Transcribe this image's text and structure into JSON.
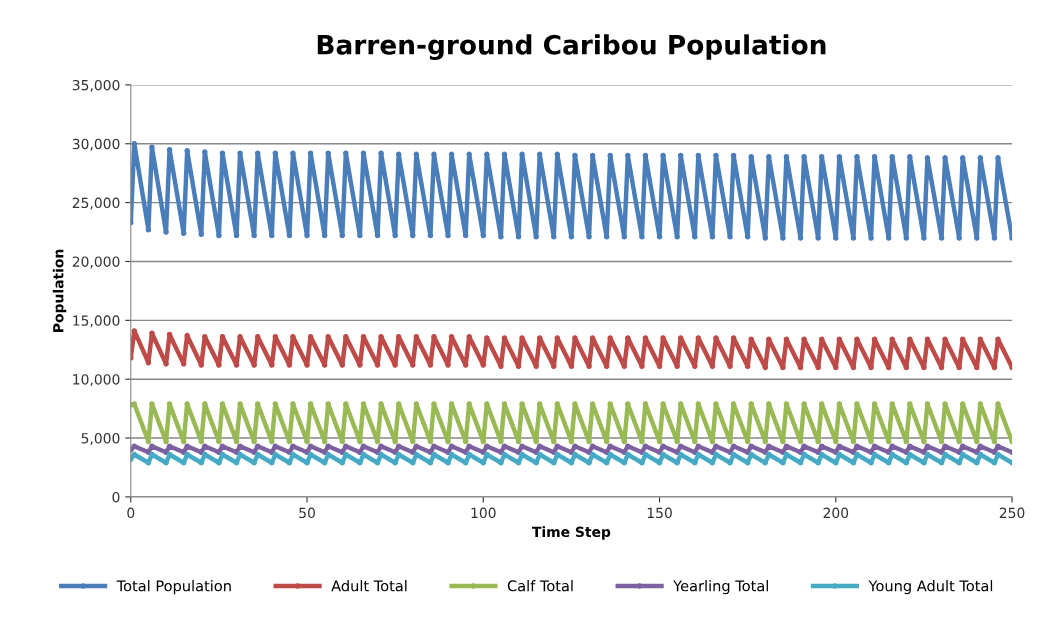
{
  "chart_data": {
    "type": "line",
    "title": "Barren-ground Caribou Population",
    "xlabel": "Time Step",
    "ylabel": "Population",
    "x": [
      0,
      1,
      5,
      6,
      10,
      11,
      15,
      16,
      20,
      21,
      25,
      26,
      30,
      31,
      35,
      36,
      40,
      41,
      45,
      46,
      50,
      51,
      55,
      56,
      60,
      61,
      65,
      66,
      70,
      71,
      75,
      76,
      80,
      81,
      85,
      86,
      90,
      91,
      95,
      96,
      100,
      101,
      105,
      106,
      110,
      111,
      115,
      116,
      120,
      121,
      125,
      126,
      130,
      131,
      135,
      136,
      140,
      141,
      145,
      146,
      150,
      151,
      155,
      156,
      160,
      161,
      165,
      166,
      170,
      171,
      175,
      176,
      180,
      181,
      185,
      186,
      190,
      191,
      195,
      196,
      200,
      201,
      205,
      206,
      210,
      211,
      215,
      216,
      220,
      221,
      225,
      226,
      230,
      231,
      235,
      236,
      240,
      241,
      245,
      246,
      250
    ],
    "series": [
      {
        "name": "Total Population",
        "color": "#4a7ebb",
        "values": [
          23300,
          30000,
          22700,
          29700,
          22500,
          29500,
          22400,
          29400,
          22300,
          29300,
          22200,
          29200,
          22200,
          29200,
          22200,
          29200,
          22200,
          29200,
          22200,
          29200,
          22200,
          29200,
          22200,
          29200,
          22200,
          29200,
          22200,
          29200,
          22200,
          29200,
          22200,
          29100,
          22200,
          29100,
          22200,
          29100,
          22200,
          29100,
          22200,
          29100,
          22200,
          29100,
          22100,
          29100,
          22100,
          29100,
          22100,
          29100,
          22100,
          29100,
          22100,
          29000,
          22100,
          29000,
          22100,
          29000,
          22100,
          29000,
          22100,
          29000,
          22100,
          29000,
          22100,
          29000,
          22100,
          29000,
          22100,
          29000,
          22100,
          29000,
          22100,
          28900,
          22000,
          28900,
          22000,
          28900,
          22000,
          28900,
          22000,
          28900,
          22000,
          28900,
          22000,
          28900,
          22000,
          28900,
          22000,
          28900,
          22000,
          28900,
          22000,
          28800,
          22000,
          28800,
          22000,
          28800,
          22000,
          28800,
          22000,
          28800,
          22000
        ]
      },
      {
        "name": "Adult Total",
        "color": "#be4b48",
        "values": [
          11800,
          14100,
          11400,
          13900,
          11300,
          13800,
          11300,
          13700,
          11200,
          13600,
          11200,
          13600,
          11200,
          13600,
          11200,
          13600,
          11200,
          13600,
          11200,
          13600,
          11200,
          13600,
          11200,
          13600,
          11200,
          13600,
          11200,
          13600,
          11200,
          13600,
          11200,
          13600,
          11200,
          13600,
          11200,
          13600,
          11200,
          13600,
          11200,
          13600,
          11200,
          13500,
          11100,
          13500,
          11100,
          13500,
          11100,
          13500,
          11100,
          13500,
          11100,
          13500,
          11100,
          13500,
          11100,
          13500,
          11100,
          13500,
          11100,
          13500,
          11100,
          13500,
          11100,
          13500,
          11100,
          13500,
          11100,
          13500,
          11100,
          13500,
          11100,
          13400,
          11000,
          13400,
          11000,
          13400,
          11000,
          13400,
          11000,
          13400,
          11000,
          13400,
          11000,
          13400,
          11000,
          13400,
          11000,
          13400,
          11000,
          13400,
          11000,
          13400,
          11000,
          13400,
          11000,
          13400,
          11000,
          13400,
          11000,
          13400,
          11000
        ]
      },
      {
        "name": "Calf Total",
        "color": "#98b954",
        "values": [
          7800,
          7900,
          4700,
          7900,
          4700,
          7900,
          4700,
          7900,
          4700,
          7900,
          4700,
          7900,
          4700,
          7900,
          4700,
          7900,
          4700,
          7900,
          4700,
          7900,
          4700,
          7900,
          4700,
          7900,
          4700,
          7900,
          4700,
          7900,
          4700,
          7900,
          4700,
          7900,
          4700,
          7900,
          4700,
          7900,
          4700,
          7900,
          4700,
          7900,
          4700,
          7900,
          4700,
          7900,
          4700,
          7900,
          4700,
          7900,
          4700,
          7900,
          4700,
          7900,
          4700,
          7900,
          4700,
          7900,
          4700,
          7900,
          4700,
          7900,
          4700,
          7900,
          4700,
          7900,
          4700,
          7900,
          4700,
          7900,
          4700,
          7900,
          4700,
          7900,
          4700,
          7900,
          4700,
          7900,
          4700,
          7900,
          4700,
          7900,
          4700,
          7900,
          4700,
          7900,
          4700,
          7900,
          4700,
          7900,
          4700,
          7900,
          4700,
          7900,
          4700,
          7900,
          4700,
          7900,
          4700,
          7900,
          4700,
          7900,
          4700
        ]
      },
      {
        "name": "Yearling Total",
        "color": "#7d60a0",
        "values": [
          4000,
          4300,
          3800,
          4300,
          3800,
          4300,
          3800,
          4300,
          3800,
          4300,
          3800,
          4300,
          3800,
          4300,
          3800,
          4300,
          3800,
          4300,
          3800,
          4300,
          3800,
          4300,
          3800,
          4300,
          3800,
          4300,
          3800,
          4300,
          3800,
          4300,
          3800,
          4300,
          3800,
          4300,
          3800,
          4300,
          3800,
          4300,
          3800,
          4300,
          3800,
          4300,
          3800,
          4300,
          3800,
          4300,
          3800,
          4300,
          3800,
          4300,
          3800,
          4300,
          3800,
          4300,
          3800,
          4300,
          3800,
          4300,
          3800,
          4300,
          3800,
          4300,
          3800,
          4300,
          3800,
          4300,
          3800,
          4300,
          3800,
          4300,
          3800,
          4300,
          3800,
          4300,
          3800,
          4300,
          3800,
          4300,
          3800,
          4300,
          3800,
          4300,
          3800,
          4300,
          3800,
          4300,
          3800,
          4300,
          3800,
          4300,
          3800,
          4300,
          3800,
          4300,
          3800,
          4300,
          3800,
          4300,
          3800,
          4300,
          3800
        ]
      },
      {
        "name": "Young Adult Total",
        "color": "#46aac5",
        "values": [
          3200,
          3600,
          2900,
          3600,
          2900,
          3600,
          2900,
          3600,
          2900,
          3600,
          2900,
          3600,
          2900,
          3600,
          2900,
          3600,
          2900,
          3600,
          2900,
          3600,
          2900,
          3600,
          2900,
          3600,
          2900,
          3600,
          2900,
          3600,
          2900,
          3600,
          2900,
          3600,
          2900,
          3600,
          2900,
          3600,
          2900,
          3600,
          2900,
          3600,
          2900,
          3600,
          2900,
          3600,
          2900,
          3600,
          2900,
          3600,
          2900,
          3600,
          2900,
          3600,
          2900,
          3600,
          2900,
          3600,
          2900,
          3600,
          2900,
          3600,
          2900,
          3600,
          2900,
          3600,
          2900,
          3600,
          2900,
          3600,
          2900,
          3600,
          2900,
          3600,
          2900,
          3600,
          2900,
          3600,
          2900,
          3600,
          2900,
          3600,
          2900,
          3600,
          2900,
          3600,
          2900,
          3600,
          2900,
          3600,
          2900,
          3600,
          2900,
          3600,
          2900,
          3600,
          2900,
          3600,
          2900,
          3600,
          2900,
          3600,
          2900
        ]
      }
    ],
    "xlim": [
      0,
      250
    ],
    "xticks": [
      0,
      50,
      100,
      150,
      200,
      250
    ],
    "ylim": [
      0,
      35000
    ],
    "yticks": [
      0,
      {
        "value": 5000,
        "label": "5,000"
      },
      {
        "value": 10000,
        "label": "10,000"
      },
      {
        "value": 15000,
        "label": "15,000"
      },
      {
        "value": 20000,
        "label": "20,000"
      },
      {
        "value": 25000,
        "label": "25,000"
      },
      {
        "value": 30000,
        "label": "30,000"
      },
      {
        "value": 35000,
        "label": "35,000"
      }
    ],
    "grid": "y",
    "legend": "bottom",
    "marker": "circle",
    "line_style": "solid"
  }
}
